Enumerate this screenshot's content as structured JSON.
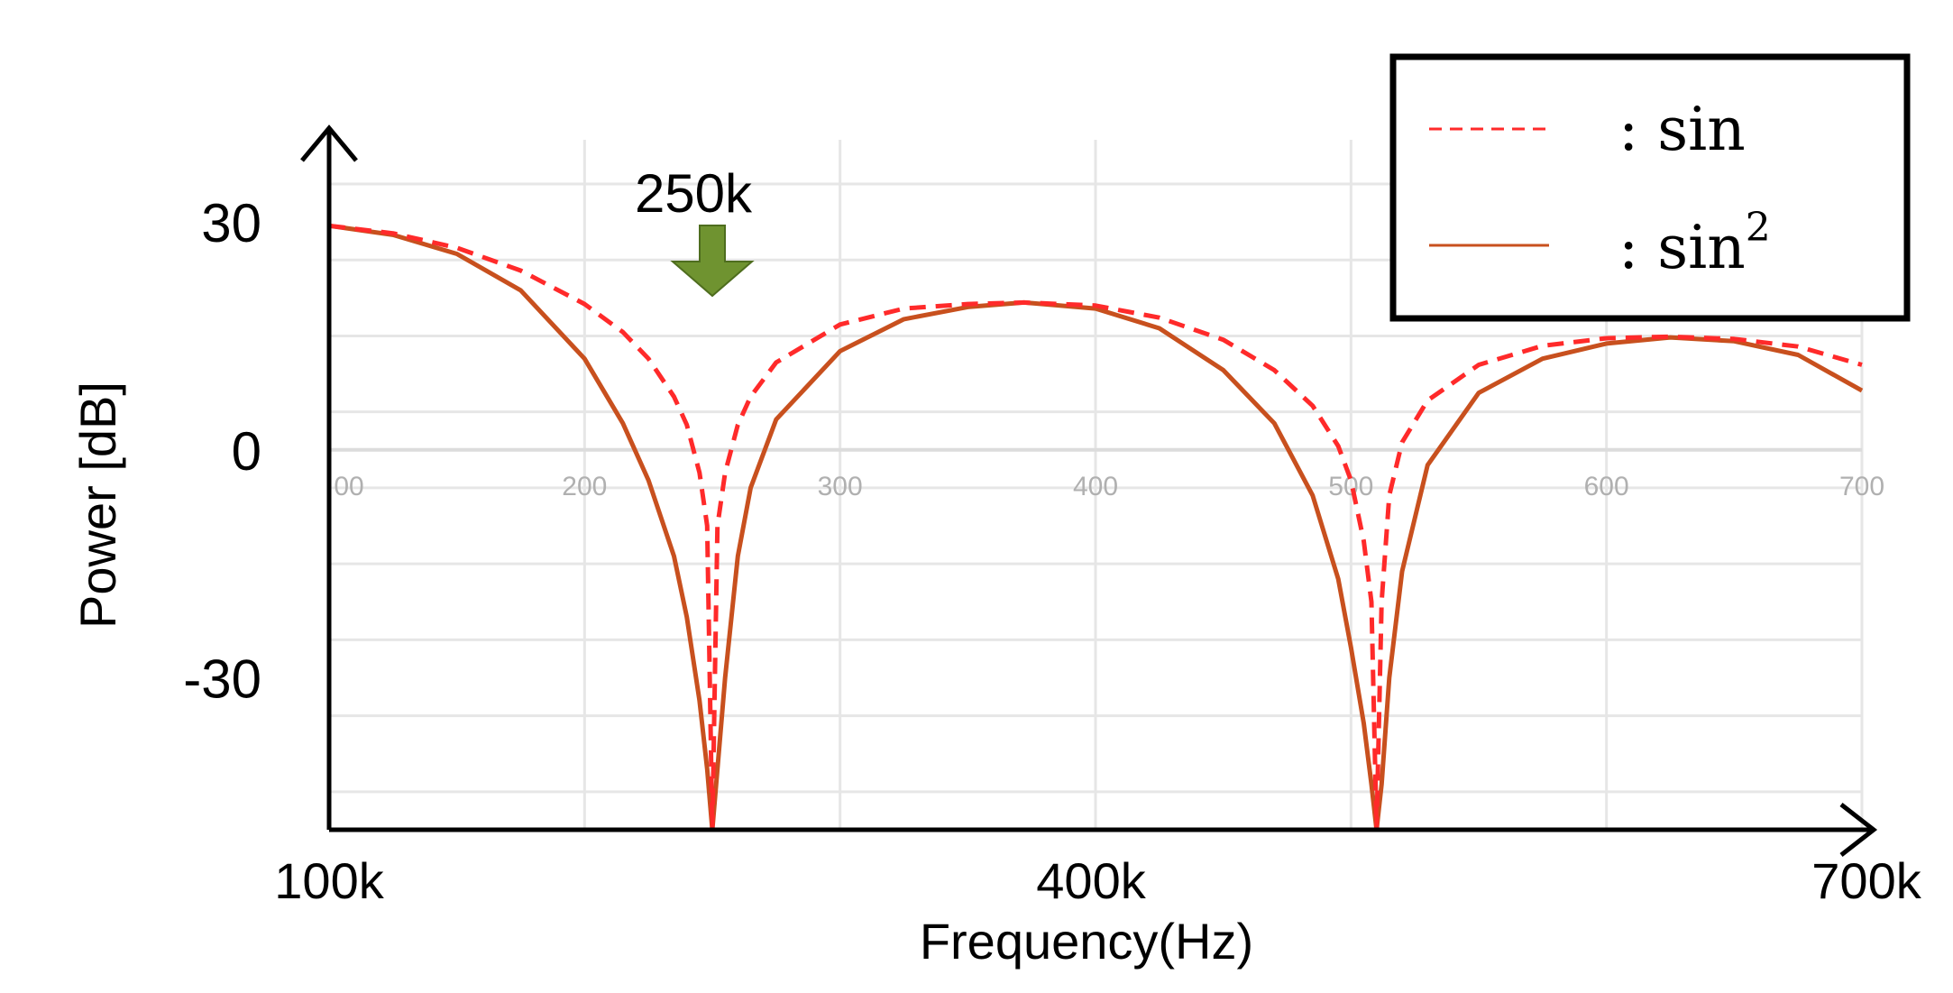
{
  "chart_data": {
    "type": "line",
    "title": "",
    "xlabel": "Frequency(Hz)",
    "ylabel": "Power [dB]",
    "xlim": [
      100,
      700
    ],
    "ylim": [
      -50,
      42
    ],
    "x_unit": "kHz",
    "major_x_ticks": [
      {
        "value": 100,
        "label": "100k"
      },
      {
        "value": 400,
        "label": "400k"
      },
      {
        "value": 700,
        "label": "700k"
      }
    ],
    "minor_x_ticks": [
      {
        "value": 100,
        "label": "00"
      },
      {
        "value": 200,
        "label": "200"
      },
      {
        "value": 300,
        "label": "300"
      },
      {
        "value": 400,
        "label": "400"
      },
      {
        "value": 500,
        "label": "500"
      },
      {
        "value": 600,
        "label": "600"
      },
      {
        "value": 700,
        "label": "700"
      }
    ],
    "y_ticks": [
      {
        "value": 30,
        "label": "30"
      },
      {
        "value": 0,
        "label": "0"
      },
      {
        "value": -30,
        "label": "-30"
      }
    ],
    "grid": true,
    "legend_position": "top-right",
    "annotation": {
      "text": "250k",
      "x": 250,
      "marker": "down-arrow"
    },
    "series": [
      {
        "name": ": sin",
        "legend_main": ": sin",
        "legend_sup": "",
        "style": "dashed",
        "color": "#ff2a2a",
        "x": [
          100,
          125,
          150,
          175,
          200,
          215,
          225,
          235,
          240,
          245,
          248,
          250,
          252,
          255,
          260,
          265,
          275,
          300,
          325,
          350,
          372,
          400,
          425,
          450,
          470,
          485,
          495,
          500,
          505,
          508,
          510,
          512,
          515,
          520,
          530,
          550,
          575,
          600,
          625,
          650,
          675,
          700
        ],
        "y": [
          29.5,
          28.5,
          26.6,
          23.6,
          19.2,
          15.5,
          12.0,
          7.0,
          3.3,
          -3.0,
          -10.0,
          -50.0,
          -10.0,
          -3.0,
          3.3,
          7.0,
          11.5,
          16.5,
          18.6,
          19.2,
          19.4,
          19.0,
          17.4,
          14.5,
          10.5,
          5.8,
          0.5,
          -4.0,
          -12.0,
          -20.0,
          -50.0,
          -20.0,
          -6.0,
          1.0,
          6.5,
          11.2,
          13.7,
          14.7,
          14.9,
          14.6,
          13.6,
          11.2
        ]
      },
      {
        "name": ": sin²",
        "legend_main": ": sin",
        "legend_sup": "2",
        "style": "solid",
        "color": "#c8501e",
        "x": [
          100,
          125,
          150,
          175,
          200,
          215,
          225,
          235,
          240,
          245,
          248,
          250,
          252,
          255,
          260,
          265,
          275,
          300,
          325,
          350,
          372,
          400,
          425,
          450,
          470,
          485,
          495,
          500,
          505,
          508,
          510,
          512,
          515,
          520,
          530,
          550,
          575,
          600,
          625,
          650,
          675,
          700
        ],
        "y": [
          29.5,
          28.3,
          25.8,
          21.0,
          12.0,
          3.5,
          -4.0,
          -14.0,
          -22.0,
          -33.0,
          -42.0,
          -50.0,
          -42.0,
          -30.0,
          -14.0,
          -5.0,
          4.0,
          13.0,
          17.2,
          18.8,
          19.4,
          18.6,
          16.0,
          10.5,
          3.5,
          -6.0,
          -17.0,
          -26.0,
          -36.0,
          -44.0,
          -50.0,
          -44.0,
          -30.0,
          -16.0,
          -2.0,
          7.5,
          12.0,
          14.0,
          14.8,
          14.3,
          12.5,
          7.8
        ]
      }
    ]
  }
}
